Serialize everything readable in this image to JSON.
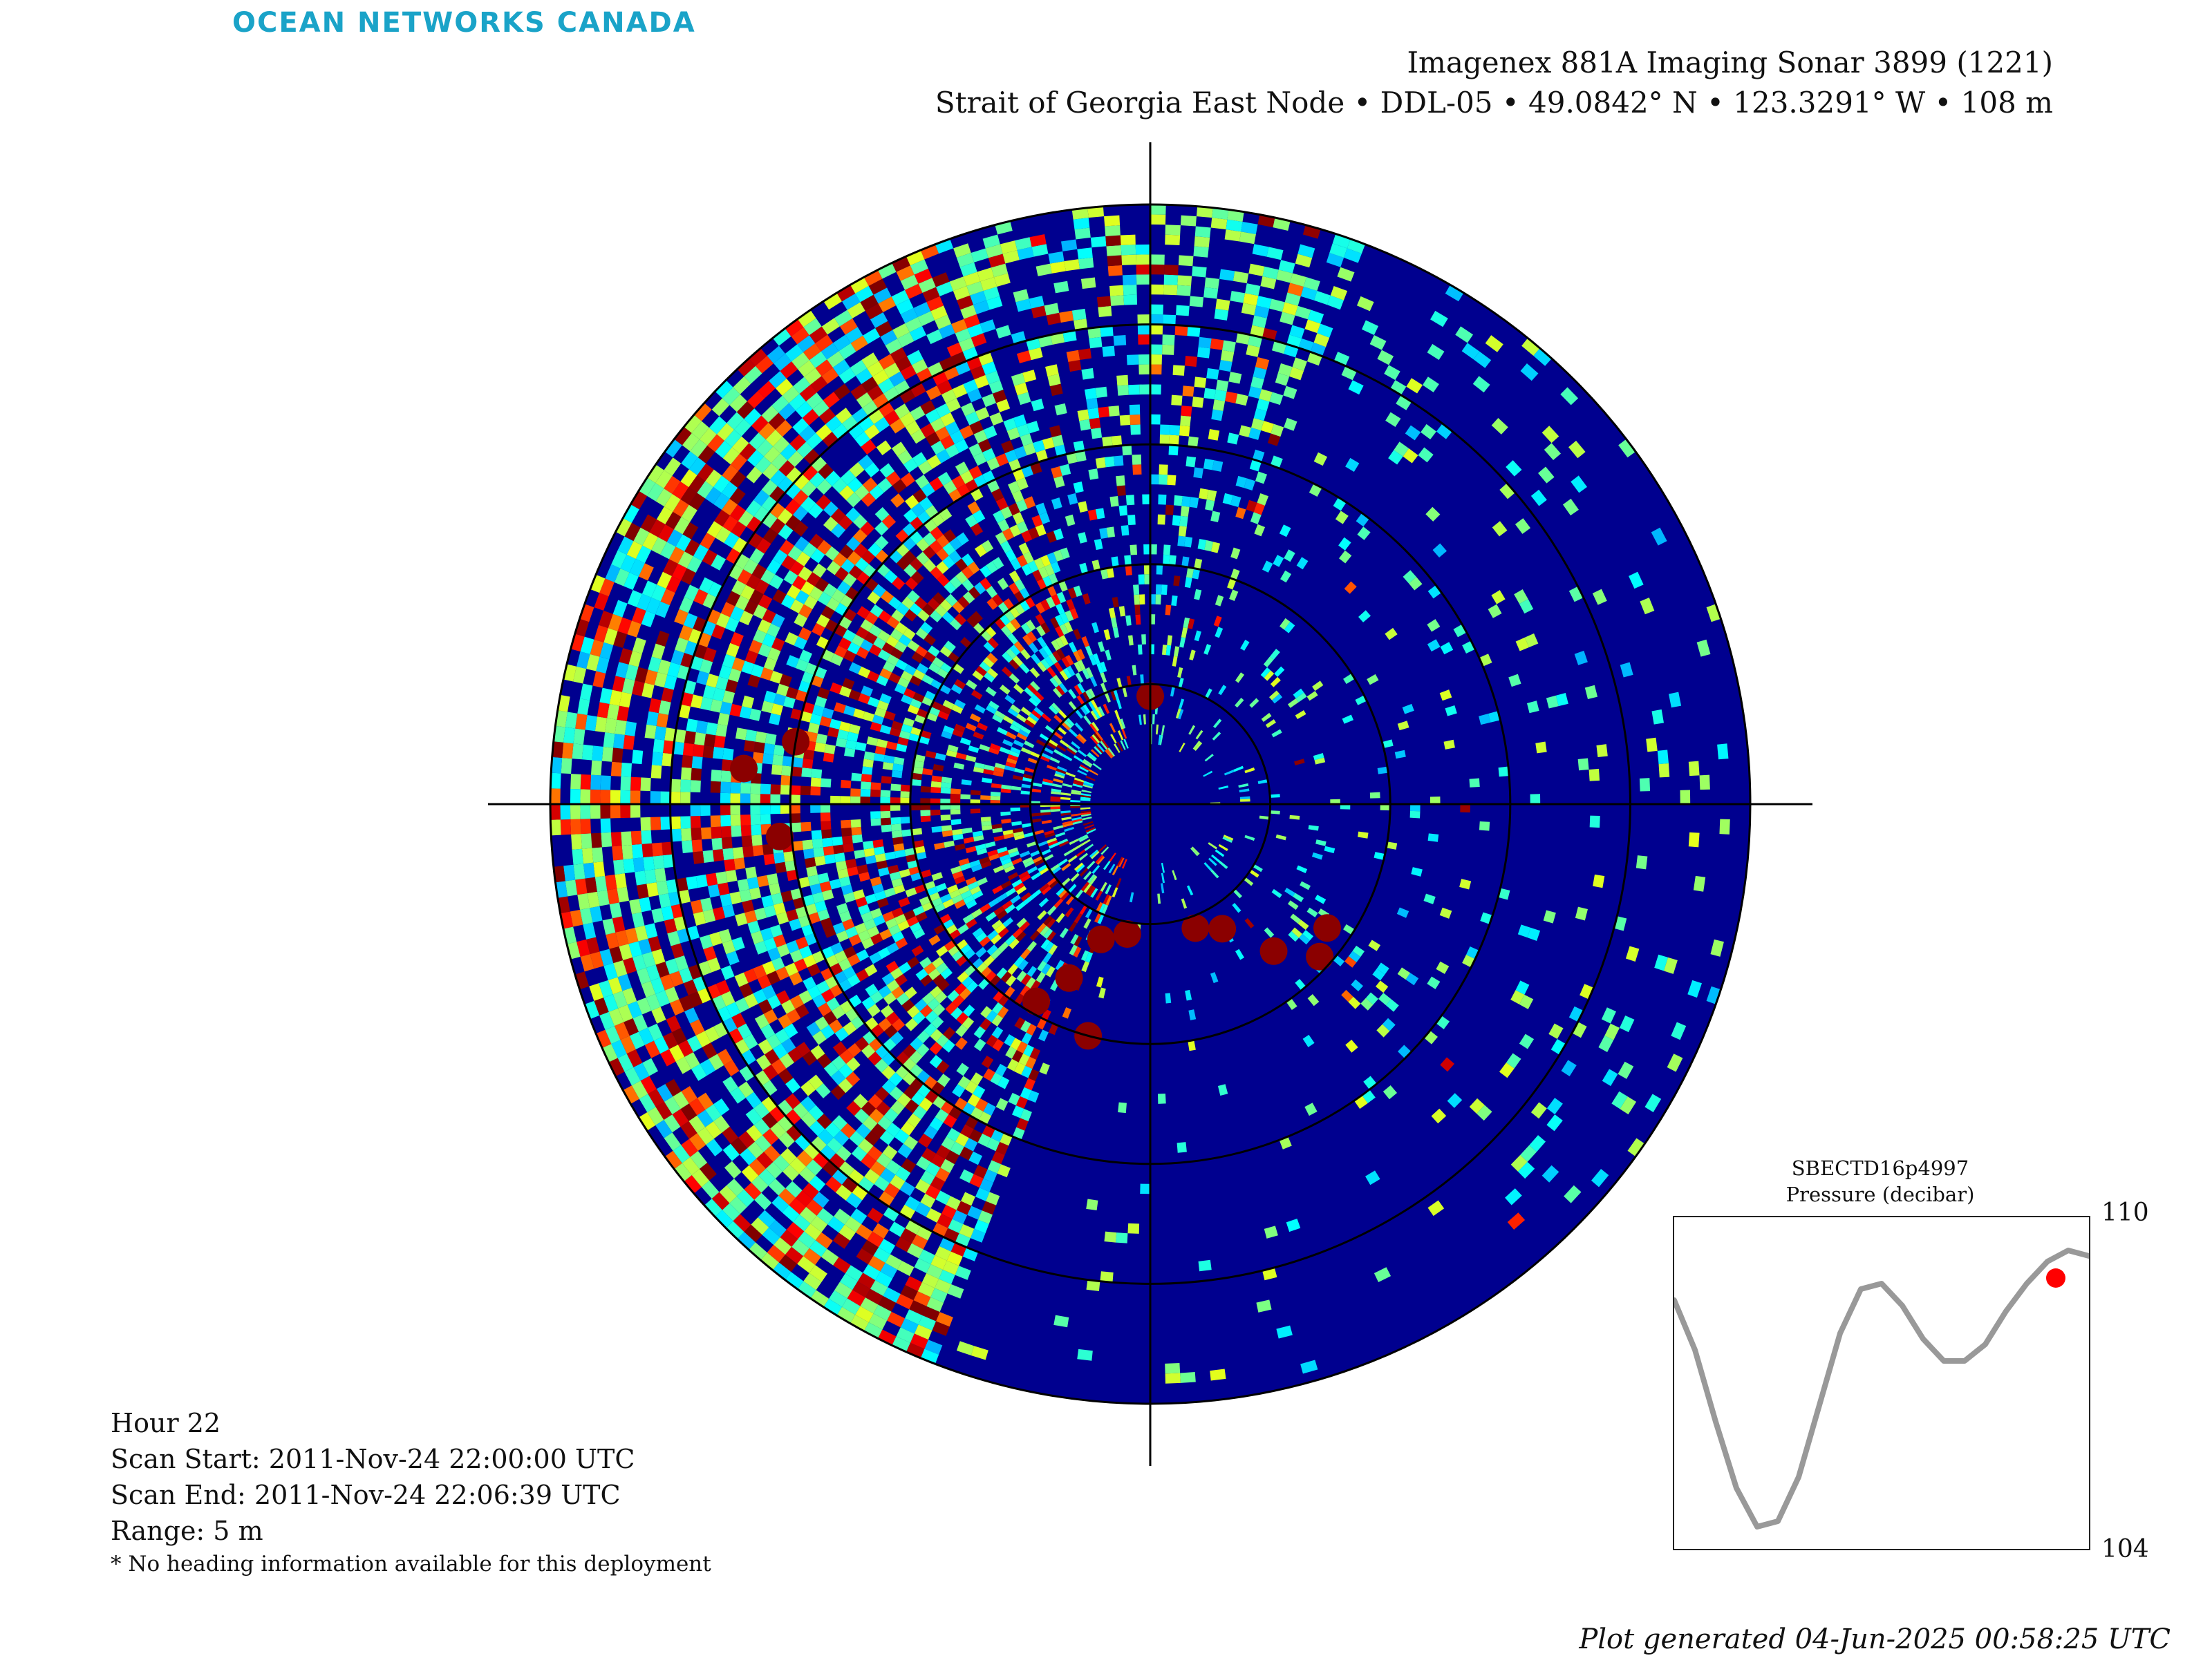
{
  "logo": "OCEAN NETWORKS CANADA",
  "title": {
    "line1": "Imagenex 881A Imaging Sonar 3899 (1221)",
    "line2": "Strait of Georgia East Node • DDL-05 • 49.0842° N • 123.3291° W • 108 m"
  },
  "info": {
    "hour": "Hour 22",
    "scan_start": "Scan Start: 2011-Nov-24 22:00:00 UTC",
    "scan_end": "Scan End: 2011-Nov-24 22:06:39 UTC",
    "range": "Range: 5 m",
    "note": "* No heading information available for this deployment"
  },
  "generated": "Plot generated 04-Jun-2025 00:58:25 UTC",
  "colors": {
    "sonar_background": "#00008f",
    "strong_return": "#8b0000",
    "pressure_line": "#999999",
    "current_marker": "#ff0000",
    "logo": "#1aa3c8"
  },
  "chart_data": [
    {
      "type": "heatmap",
      "subtype": "polar sonar scan",
      "range_m": 5,
      "range_rings": 5,
      "colormap": "jet",
      "crosshair": true,
      "strong_returns": [
        {
          "angle_deg": 0,
          "range_m": 0.9
        },
        {
          "angle_deg": 200,
          "range_m": 1.2
        },
        {
          "angle_deg": 205,
          "range_m": 1.6
        },
        {
          "angle_deg": 210,
          "range_m": 1.9
        },
        {
          "angle_deg": 195,
          "range_m": 2.0
        },
        {
          "angle_deg": 190,
          "range_m": 1.1
        },
        {
          "angle_deg": 150,
          "range_m": 1.2
        },
        {
          "angle_deg": 140,
          "range_m": 1.6
        },
        {
          "angle_deg": 132,
          "range_m": 1.9
        },
        {
          "angle_deg": 160,
          "range_m": 1.1
        },
        {
          "angle_deg": 125,
          "range_m": 1.8
        },
        {
          "angle_deg": 265,
          "range_m": 3.1
        },
        {
          "angle_deg": 275,
          "range_m": 3.4
        },
        {
          "angle_deg": 280,
          "range_m": 3.0
        }
      ]
    },
    {
      "type": "line",
      "title": "SBECTD16p4997",
      "subtitle": "Pressure (decibar)",
      "ylim": [
        104,
        110
      ],
      "yticks": [
        110,
        104
      ],
      "x": [
        0,
        0.05,
        0.1,
        0.15,
        0.2,
        0.25,
        0.3,
        0.35,
        0.4,
        0.45,
        0.5,
        0.55,
        0.6,
        0.65,
        0.7,
        0.75,
        0.8,
        0.85,
        0.9,
        0.95,
        1.0
      ],
      "values": [
        108.5,
        107.6,
        106.3,
        105.1,
        104.4,
        104.5,
        105.3,
        106.6,
        107.9,
        108.7,
        108.8,
        108.4,
        107.8,
        107.4,
        107.4,
        107.7,
        108.3,
        108.8,
        109.2,
        109.4,
        109.3
      ],
      "current_point": {
        "x": 0.92,
        "value": 108.9
      }
    }
  ]
}
